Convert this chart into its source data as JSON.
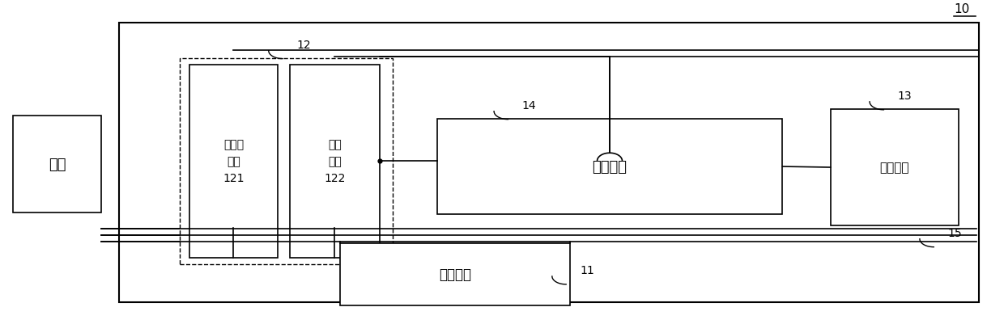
{
  "bg_color": "#ffffff",
  "line_color": "#000000",
  "fig_width": 12.4,
  "fig_height": 4.02,
  "labels": {
    "motor": "电机",
    "bridge": "三相桥\n电路\n121",
    "switch": "开关\n模组\n122",
    "cell": "电芯模组",
    "control": "控制模组",
    "coil": "受电线圈",
    "label_10": "10",
    "label_11": "11",
    "label_12": "12",
    "label_13": "13",
    "label_14": "14",
    "label_15": "15"
  }
}
